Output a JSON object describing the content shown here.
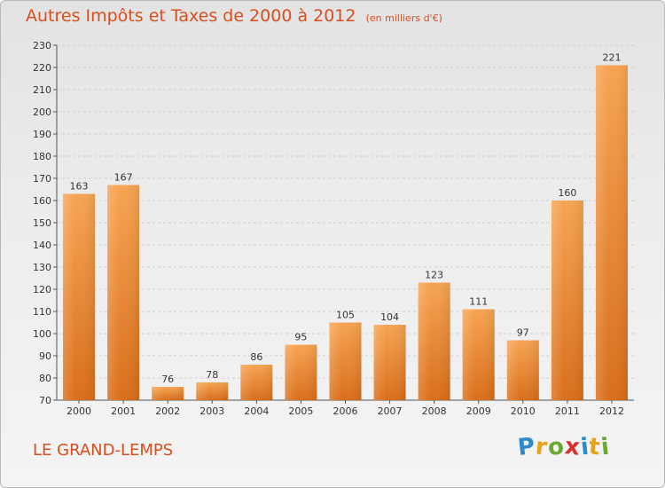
{
  "header": {
    "title": "Autres Impôts et Taxes de 2000 à 2012",
    "unit": "(en milliers d'€)"
  },
  "footer": {
    "commune": "LE GRAND-LEMPS",
    "logo_text": "Proxiti",
    "logo_letters": [
      {
        "char": "P",
        "color": "#2f8ac9"
      },
      {
        "char": "r",
        "color": "#e8a11a"
      },
      {
        "char": "o",
        "color": "#6aa832"
      },
      {
        "char": "x",
        "color": "#d92f2f"
      },
      {
        "char": "i",
        "color": "#2f8ac9"
      },
      {
        "char": "t",
        "color": "#e8a11a"
      },
      {
        "char": "i",
        "color": "#6aa832"
      }
    ]
  },
  "chart_data": {
    "type": "bar",
    "title": "Autres Impôts et Taxes de 2000 à 2012",
    "subtitle": "(en milliers d'€)",
    "categories": [
      "2000",
      "2001",
      "2002",
      "2003",
      "2004",
      "2005",
      "2006",
      "2007",
      "2008",
      "2009",
      "2010",
      "2011",
      "2012"
    ],
    "values": [
      163,
      167,
      76,
      78,
      86,
      95,
      105,
      104,
      123,
      111,
      97,
      160,
      221
    ],
    "xlabel": "",
    "ylabel": "",
    "ylim": [
      70,
      230
    ],
    "yticks": [
      70,
      80,
      90,
      100,
      110,
      120,
      130,
      140,
      150,
      160,
      170,
      180,
      190,
      200,
      210,
      220,
      230
    ],
    "grid": true,
    "bar_color": "#f08a30"
  }
}
